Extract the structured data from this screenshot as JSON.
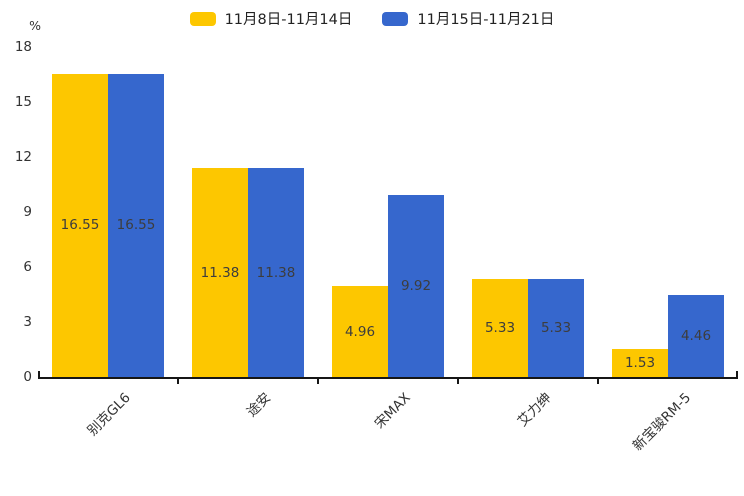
{
  "chart_data": {
    "type": "bar",
    "title": "",
    "categories": [
      "别克GL6",
      "途安",
      "宋MAX",
      "艾力绅",
      "新宝骏RM-5"
    ],
    "series": [
      {
        "name": "11月8日-11月14日",
        "color": "#FDC700",
        "values": [
          16.55,
          11.38,
          4.96,
          5.33,
          1.53
        ]
      },
      {
        "name": "11月15日-11月21日",
        "color": "#3667CD",
        "values": [
          16.55,
          11.38,
          9.92,
          5.33,
          4.46
        ]
      }
    ],
    "xlabel": "",
    "ylabel": "%",
    "ylim": [
      0,
      18
    ],
    "yticks": [
      0,
      3,
      6,
      9,
      12,
      15,
      18
    ],
    "grid": false,
    "legend_position": "top",
    "bar_label_decimals": 2,
    "colors": {
      "axis": "#161616",
      "tick_label": "#333333",
      "bar_value_label": "#3d3d3d",
      "legend_text": "#222222"
    }
  }
}
